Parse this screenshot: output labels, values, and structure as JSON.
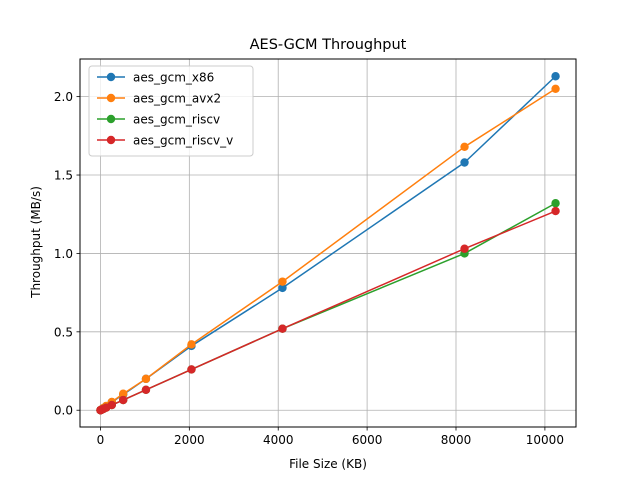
{
  "chart_data": {
    "type": "line",
    "title": "AES-GCM Throughput",
    "xlabel": "File Size (KB)",
    "ylabel": "Throughput (MB/s)",
    "xlim": [
      -460,
      10700
    ],
    "ylim": [
      -0.107,
      2.24
    ],
    "grid": true,
    "legend_position": "top-left",
    "xticks": [
      0,
      2000,
      4000,
      6000,
      8000,
      10000
    ],
    "xtick_labels": [
      "0",
      "2000",
      "4000",
      "6000",
      "8000",
      "10000"
    ],
    "yticks": [
      0.0,
      0.5,
      1.0,
      1.5,
      2.0
    ],
    "ytick_labels": [
      "0.0",
      "0.5",
      "1.0",
      "1.5",
      "2.0"
    ],
    "x": [
      1,
      2,
      4,
      8,
      16,
      32,
      64,
      128,
      256,
      512,
      1024,
      2048,
      4096,
      8192,
      10240
    ],
    "series": [
      {
        "name": "aes_gcm_x86",
        "color": "#1f77b4",
        "values": [
          0.0002,
          0.0004,
          0.0008,
          0.0016,
          0.0032,
          0.0064,
          0.013,
          0.026,
          0.052,
          0.1,
          0.2,
          0.41,
          0.78,
          1.58,
          2.13
        ]
      },
      {
        "name": "aes_gcm_avx2",
        "color": "#ff7f0e",
        "values": [
          0.0002,
          0.0004,
          0.0008,
          0.0017,
          0.0034,
          0.0068,
          0.014,
          0.027,
          0.053,
          0.105,
          0.2,
          0.42,
          0.82,
          1.68,
          2.05
        ]
      },
      {
        "name": "aes_gcm_riscv",
        "color": "#2ca02c",
        "values": [
          0.0001,
          0.0002,
          0.0005,
          0.001,
          0.002,
          0.004,
          0.008,
          0.016,
          0.033,
          0.065,
          0.13,
          0.26,
          0.52,
          1.0,
          1.32
        ]
      },
      {
        "name": "aes_gcm_riscv_v",
        "color": "#d62728",
        "values": [
          0.0001,
          0.0002,
          0.0005,
          0.001,
          0.002,
          0.004,
          0.008,
          0.016,
          0.033,
          0.065,
          0.13,
          0.26,
          0.52,
          1.03,
          1.27
        ]
      }
    ]
  }
}
